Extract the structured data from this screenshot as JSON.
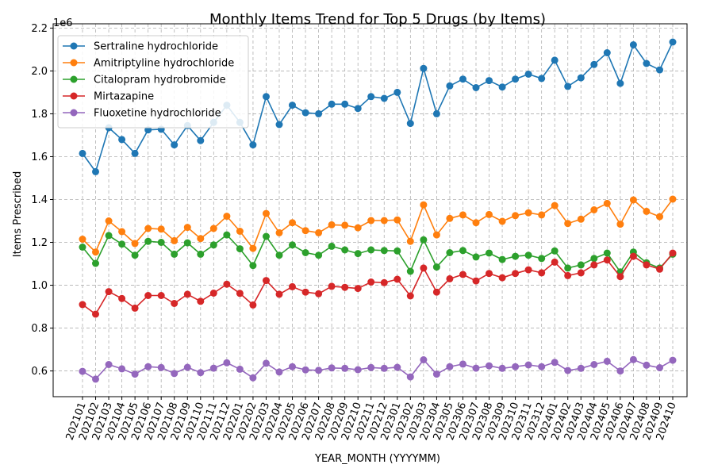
{
  "chart_data": {
    "type": "line",
    "title": "Monthly Items Trend for Top 5 Drugs (by Items)",
    "xlabel": "YEAR_MONTH (YYYYMM)",
    "ylabel": "Items Prescribed",
    "y_multiplier_label": "1e6",
    "ylim": [
      480000,
      2220000
    ],
    "y_ticks": [
      600000,
      800000,
      1000000,
      1200000,
      1400000,
      1600000,
      1800000,
      2000000,
      2200000
    ],
    "y_tick_labels": [
      "0.6",
      "0.8",
      "1.0",
      "1.2",
      "1.4",
      "1.6",
      "1.8",
      "2.0",
      "2.2"
    ],
    "grid": true,
    "legend_position": "top-left",
    "categories": [
      "202101",
      "202102",
      "202103",
      "202104",
      "202105",
      "202106",
      "202107",
      "202108",
      "202109",
      "202110",
      "202111",
      "202112",
      "202201",
      "202202",
      "202203",
      "202204",
      "202205",
      "202206",
      "202207",
      "202208",
      "202209",
      "202210",
      "202211",
      "202212",
      "202301",
      "202302",
      "202303",
      "202304",
      "202305",
      "202306",
      "202307",
      "202308",
      "202309",
      "202310",
      "202311",
      "202312",
      "202401",
      "202402",
      "202403",
      "202404",
      "202405",
      "202406",
      "202407",
      "202408",
      "202409",
      "202410"
    ],
    "series": [
      {
        "name": "Sertraline hydrochloride",
        "color": "#1f77b4",
        "values": [
          1615000,
          1530000,
          1735000,
          1680000,
          1615000,
          1725000,
          1728000,
          1655000,
          1745000,
          1675000,
          1760000,
          1840000,
          1760000,
          1655000,
          1880000,
          1750000,
          1840000,
          1805000,
          1800000,
          1845000,
          1845000,
          1825000,
          1880000,
          1872000,
          1900000,
          1755000,
          2012000,
          1800000,
          1930000,
          1962000,
          1922000,
          1955000,
          1925000,
          1962000,
          1985000,
          1965000,
          2050000,
          1928000,
          1968000,
          2030000,
          2085000,
          1942000,
          2122000,
          2035000,
          2005000,
          2135000
        ]
      },
      {
        "name": "Amitriptyline hydrochloride",
        "color": "#ff7f0e",
        "values": [
          1215000,
          1155000,
          1300000,
          1250000,
          1195000,
          1265000,
          1262000,
          1208000,
          1270000,
          1218000,
          1265000,
          1322000,
          1252000,
          1172000,
          1335000,
          1245000,
          1292000,
          1255000,
          1245000,
          1282000,
          1280000,
          1268000,
          1302000,
          1302000,
          1305000,
          1205000,
          1375000,
          1235000,
          1312000,
          1328000,
          1292000,
          1330000,
          1298000,
          1325000,
          1338000,
          1328000,
          1372000,
          1288000,
          1308000,
          1352000,
          1382000,
          1285000,
          1398000,
          1345000,
          1320000,
          1402000
        ]
      },
      {
        "name": "Citalopram hydrobromide",
        "color": "#2ca02c",
        "values": [
          1178000,
          1102000,
          1232000,
          1192000,
          1140000,
          1205000,
          1200000,
          1145000,
          1198000,
          1145000,
          1188000,
          1235000,
          1170000,
          1092000,
          1228000,
          1140000,
          1188000,
          1152000,
          1140000,
          1182000,
          1165000,
          1148000,
          1165000,
          1162000,
          1160000,
          1065000,
          1212000,
          1085000,
          1152000,
          1162000,
          1132000,
          1150000,
          1120000,
          1135000,
          1140000,
          1125000,
          1160000,
          1080000,
          1095000,
          1125000,
          1150000,
          1062000,
          1155000,
          1105000,
          1080000,
          1145000
        ]
      },
      {
        "name": "Mirtazapine",
        "color": "#d62728",
        "values": [
          910000,
          865000,
          970000,
          938000,
          893000,
          952000,
          952000,
          915000,
          958000,
          925000,
          963000,
          1005000,
          962000,
          908000,
          1022000,
          958000,
          993000,
          968000,
          960000,
          995000,
          990000,
          985000,
          1015000,
          1012000,
          1028000,
          950000,
          1080000,
          968000,
          1030000,
          1050000,
          1020000,
          1055000,
          1035000,
          1055000,
          1072000,
          1058000,
          1108000,
          1045000,
          1058000,
          1095000,
          1118000,
          1040000,
          1135000,
          1095000,
          1075000,
          1150000
        ]
      },
      {
        "name": "Fluoxetine hydrochloride",
        "color": "#9467bd",
        "values": [
          598000,
          562000,
          630000,
          610000,
          585000,
          620000,
          616000,
          588000,
          617000,
          592000,
          613000,
          638000,
          608000,
          568000,
          636000,
          595000,
          620000,
          605000,
          603000,
          614000,
          612000,
          606000,
          616000,
          612000,
          617000,
          572000,
          652000,
          585000,
          620000,
          632000,
          613000,
          624000,
          612000,
          620000,
          628000,
          620000,
          640000,
          602000,
          612000,
          630000,
          645000,
          600000,
          653000,
          627000,
          615000,
          650000
        ]
      }
    ]
  }
}
